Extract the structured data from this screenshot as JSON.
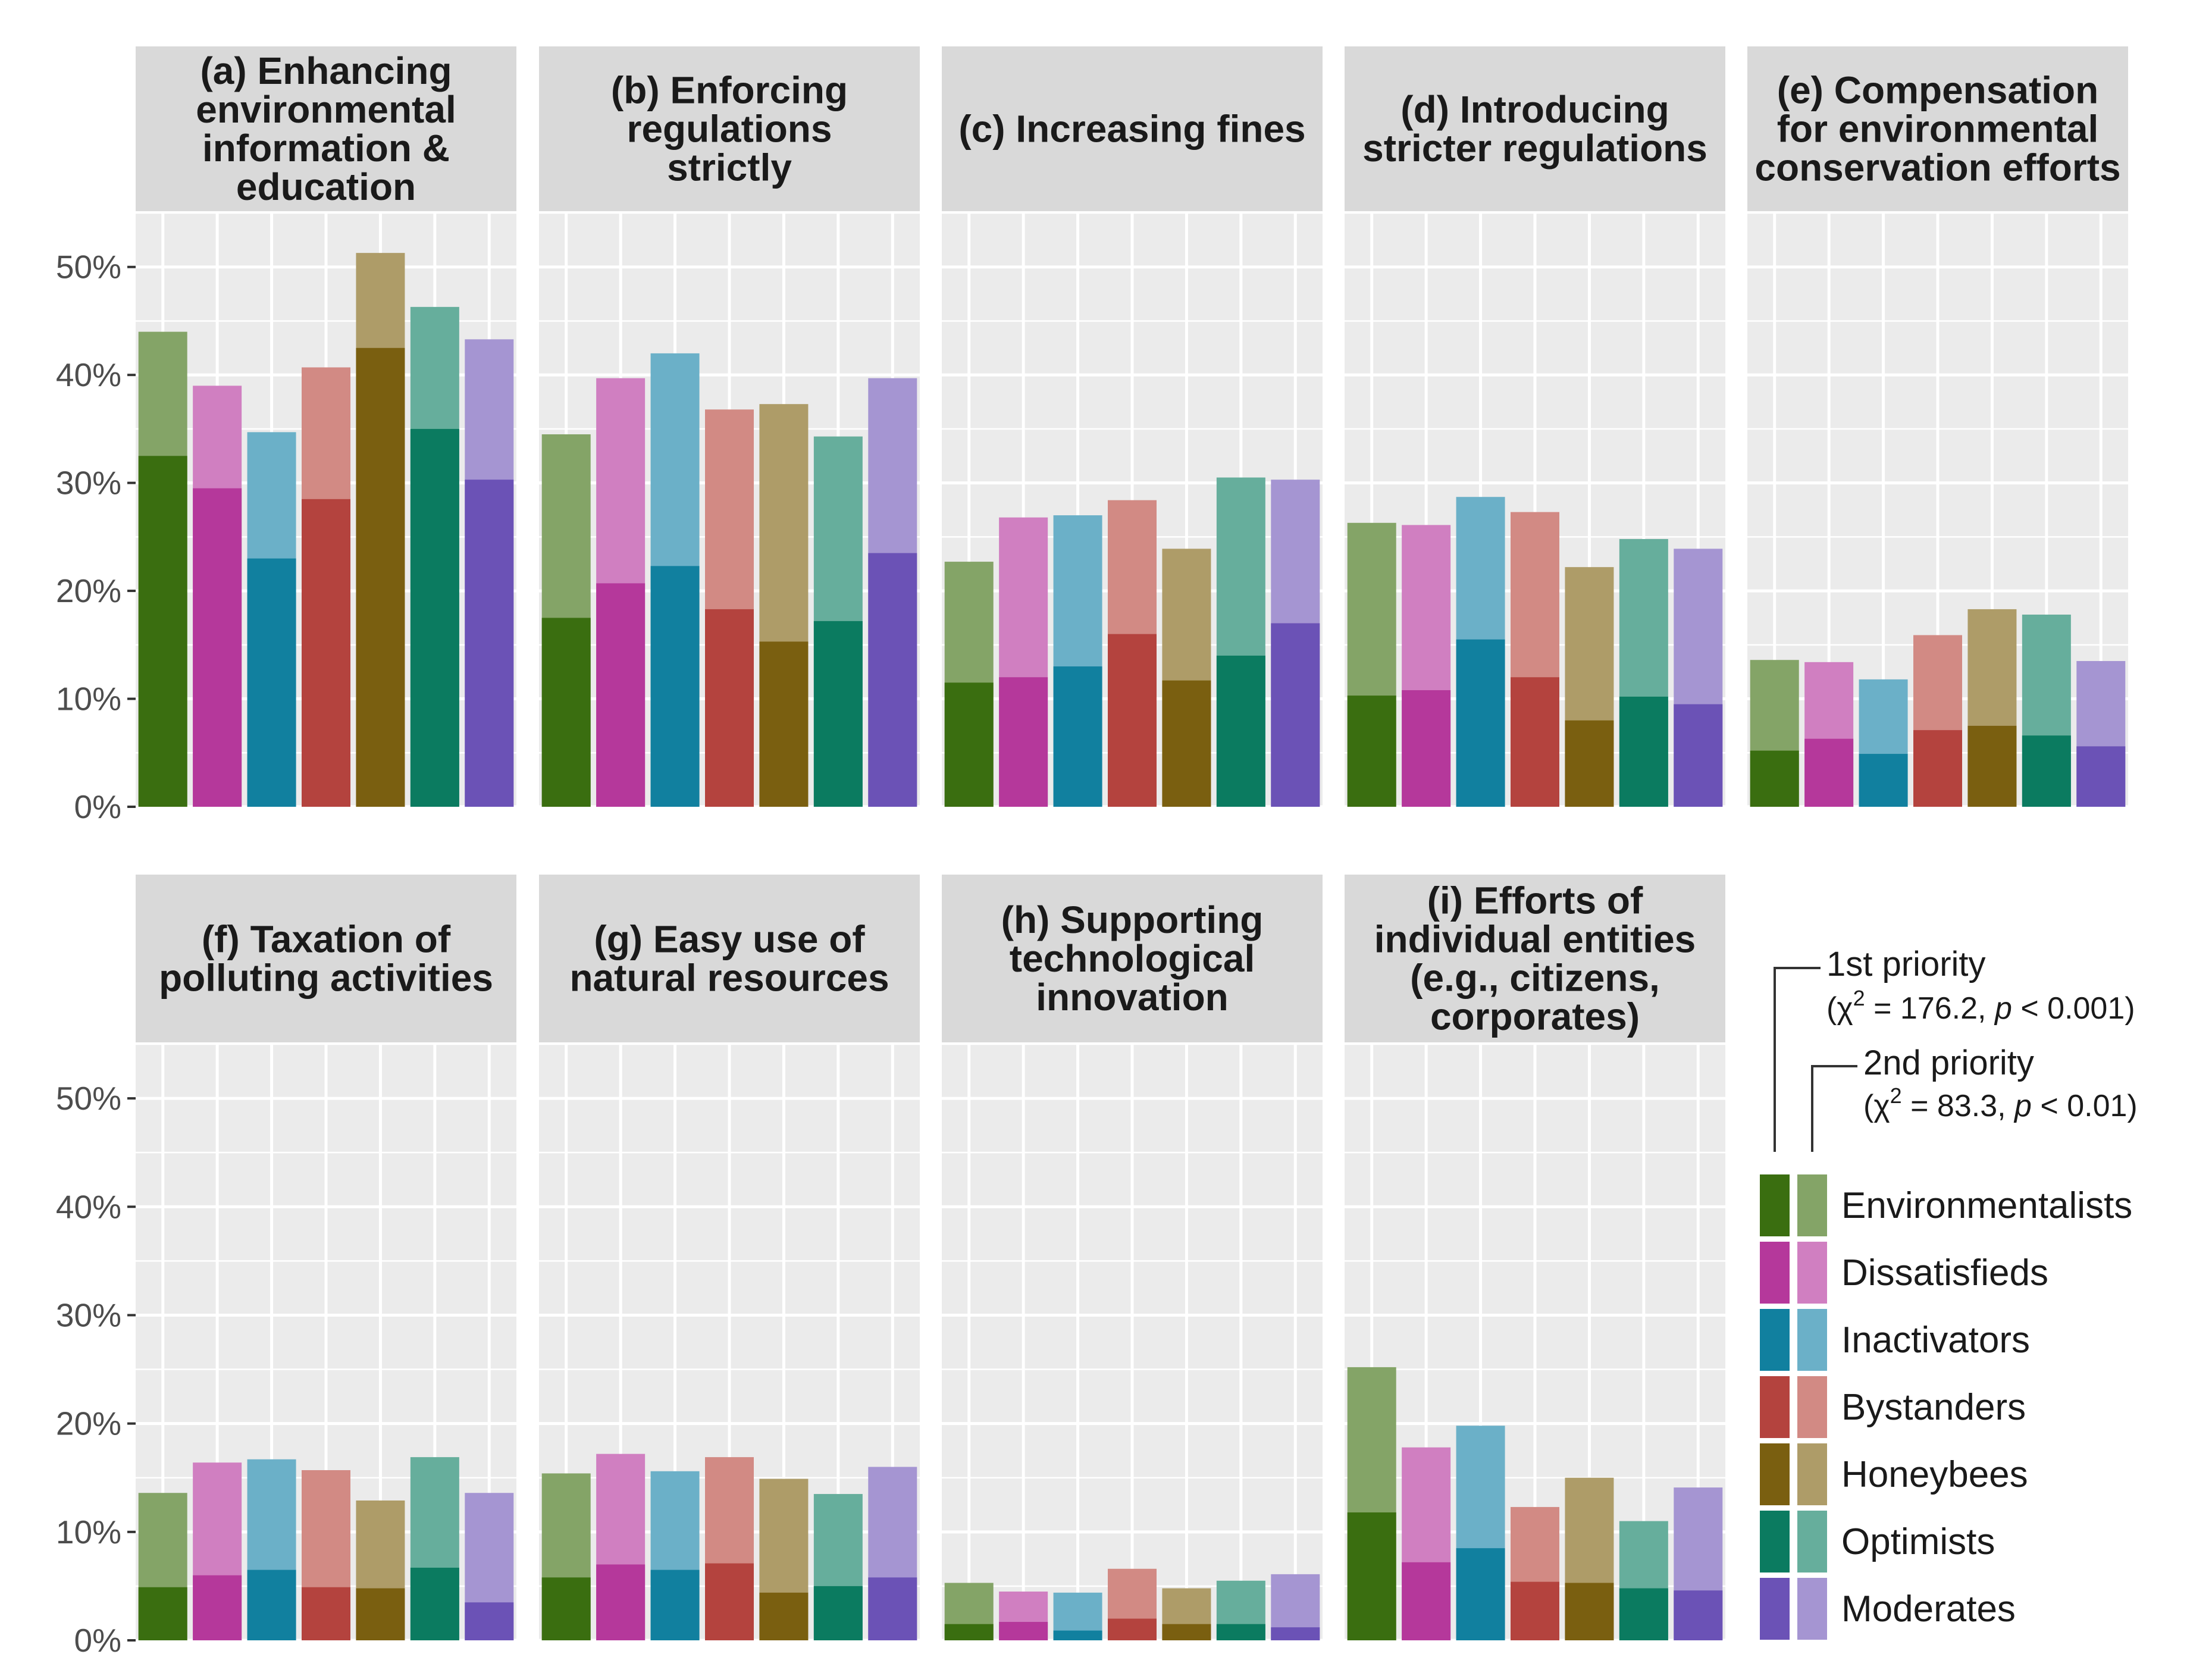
{
  "chart_data": {
    "type": "bar",
    "subtype": "faceted-overlaid-bar",
    "ylim": [
      0,
      0.55
    ],
    "y_ticks": [
      "0%",
      "10%",
      "20%",
      "30%",
      "40%",
      "50%"
    ],
    "y_tick_values": [
      0,
      0.1,
      0.2,
      0.3,
      0.4,
      0.5
    ],
    "groups": [
      "Environmentalists",
      "Dissatisfieds",
      "Inactivators",
      "Bystanders",
      "Honeybees",
      "Optimists",
      "Moderates"
    ],
    "colors": {
      "first": [
        "#3a6e10",
        "#b5389b",
        "#11809f",
        "#b4433e",
        "#7a5f10",
        "#0b7b60",
        "#6b52b6"
      ],
      "second": [
        "#84a467",
        "#d07fc1",
        "#6bb0c8",
        "#d28a84",
        "#ae9c68",
        "#66ae9c",
        "#a595d2"
      ]
    },
    "legend": {
      "first_label": "1st priority",
      "first_stat_prefix": "(χ",
      "first_stat_sup": "2",
      "first_stat_mid": " = 176.2, ",
      "first_stat_p": "p",
      "first_stat_end": " < 0.001)",
      "second_label": "2nd priority",
      "second_stat_prefix": "(χ",
      "second_stat_sup": "2",
      "second_stat_mid": " = 83.3, ",
      "second_stat_p": "p",
      "second_stat_end": " < 0.01)"
    },
    "facets": [
      {
        "title_lines": [
          "(a) Enhancing",
          "environmental",
          "information &",
          "education"
        ],
        "first": [
          32.5,
          29.5,
          23.0,
          28.5,
          42.5,
          35.0,
          30.3
        ],
        "combined": [
          44.0,
          39.0,
          34.7,
          40.7,
          51.3,
          46.3,
          43.3
        ]
      },
      {
        "title_lines": [
          "(b) Enforcing",
          "regulations",
          "strictly"
        ],
        "first": [
          17.5,
          20.7,
          22.3,
          18.3,
          15.3,
          17.2,
          23.5
        ],
        "combined": [
          34.5,
          39.7,
          42.0,
          36.8,
          37.3,
          34.3,
          39.7
        ]
      },
      {
        "title_lines": [
          "(c) Increasing fines"
        ],
        "first": [
          11.5,
          12.0,
          13.0,
          16.0,
          11.7,
          14.0,
          17.0
        ],
        "combined": [
          22.7,
          26.8,
          27.0,
          28.4,
          23.9,
          30.5,
          30.3
        ]
      },
      {
        "title_lines": [
          "(d) Introducing",
          "stricter regulations"
        ],
        "first": [
          10.3,
          10.8,
          15.5,
          12.0,
          8.0,
          10.2,
          9.5
        ],
        "combined": [
          26.3,
          26.1,
          28.7,
          27.3,
          22.2,
          24.8,
          23.9
        ]
      },
      {
        "title_lines": [
          "(e) Compensation",
          "for environmental",
          "conservation efforts"
        ],
        "first": [
          5.2,
          6.3,
          4.9,
          7.1,
          7.5,
          6.6,
          5.6
        ],
        "combined": [
          13.6,
          13.4,
          11.8,
          15.9,
          18.3,
          17.8,
          13.5
        ]
      },
      {
        "title_lines": [
          "(f) Taxation of",
          "polluting activities"
        ],
        "first": [
          4.9,
          6.0,
          6.5,
          4.9,
          4.8,
          6.7,
          3.5
        ],
        "combined": [
          13.6,
          16.4,
          16.7,
          15.7,
          12.9,
          16.9,
          13.6
        ]
      },
      {
        "title_lines": [
          "(g) Easy use of",
          "natural resources"
        ],
        "first": [
          5.8,
          7.0,
          6.5,
          7.1,
          4.4,
          5.0,
          5.8
        ],
        "combined": [
          15.4,
          17.2,
          15.6,
          16.9,
          14.9,
          13.5,
          16.0
        ]
      },
      {
        "title_lines": [
          "(h) Supporting",
          "technological",
          "innovation"
        ],
        "first": [
          1.5,
          1.7,
          0.9,
          2.0,
          1.5,
          1.5,
          1.2
        ],
        "combined": [
          5.3,
          4.5,
          4.4,
          6.6,
          4.8,
          5.5,
          6.1
        ]
      },
      {
        "title_lines": [
          "(i) Efforts of",
          "individual entities",
          "(e.g., citizens,",
          "corporates)"
        ],
        "first": [
          11.8,
          7.2,
          8.5,
          5.4,
          5.3,
          4.8,
          4.6
        ],
        "combined": [
          25.2,
          17.8,
          19.8,
          12.3,
          15.0,
          11.0,
          14.1
        ]
      }
    ]
  }
}
